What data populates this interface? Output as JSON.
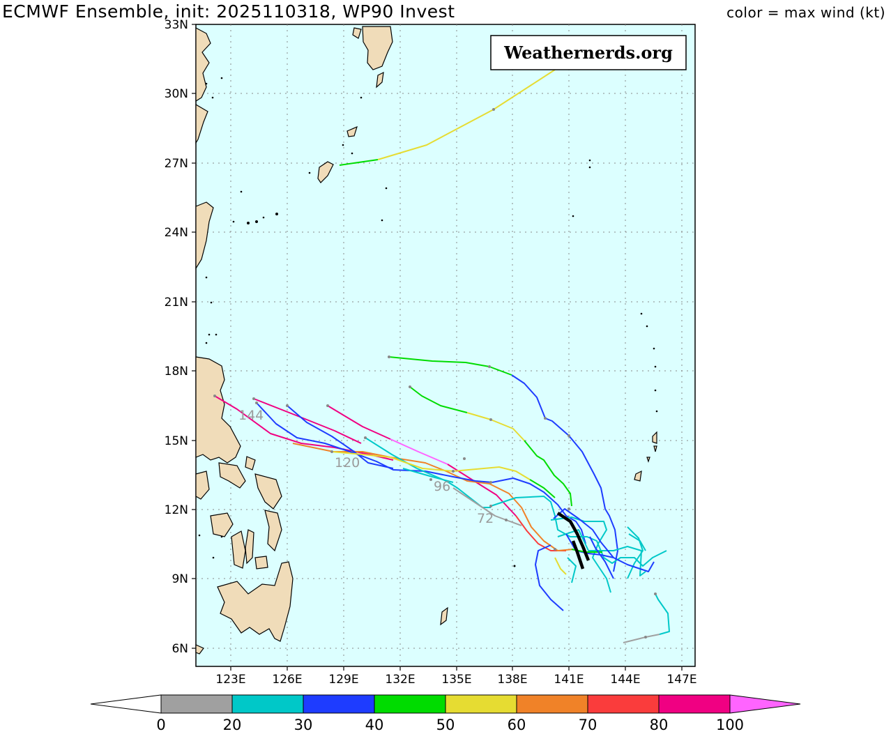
{
  "header": {
    "title_left": "ECMWF Ensemble, init: 2025110318, WP90 Invest",
    "title_right": "color = max wind (kt)"
  },
  "watermark": "Weathernerds.org",
  "map": {
    "lat_labels": [
      "33N",
      "30N",
      "27N",
      "24N",
      "21N",
      "18N",
      "15N",
      "12N",
      "9N",
      "6N"
    ],
    "lon_labels": [
      "123E",
      "126E",
      "129E",
      "132E",
      "135E",
      "138E",
      "141E",
      "144E",
      "147E"
    ],
    "ocean_color": "#dcffff",
    "land_color": "#f0dcb9",
    "hour_labels": [
      "144",
      "120",
      "96",
      "72"
    ]
  },
  "colorbar": {
    "ticks": [
      "0",
      "20",
      "30",
      "40",
      "50",
      "60",
      "70",
      "80",
      "100"
    ],
    "colors": [
      "#a0a0a0",
      "#00c8c8",
      "#1e3cff",
      "#00dc00",
      "#e6dc32",
      "#f08228",
      "#fa3c3c",
      "#f00082",
      "#ff64ff"
    ]
  }
}
